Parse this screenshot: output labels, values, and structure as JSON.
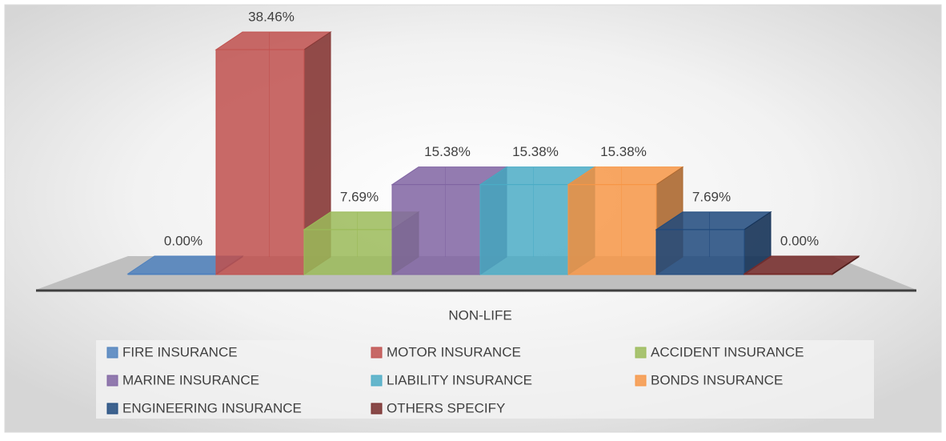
{
  "chart_data": {
    "type": "bar3d",
    "categories": [
      "NON-LIFE"
    ],
    "series": [
      {
        "name": "FIRE INSURANCE",
        "color": "#4f81bd",
        "values": [
          0
        ],
        "value_labels": [
          "0.00%"
        ]
      },
      {
        "name": "MOTOR INSURANCE",
        "color": "#c0504d",
        "values": [
          38.46
        ],
        "value_labels": [
          "38.46%"
        ]
      },
      {
        "name": "ACCIDENT INSURANCE",
        "color": "#9bbb59",
        "values": [
          7.69
        ],
        "value_labels": [
          "7.69%"
        ]
      },
      {
        "name": "MARINE INSURANCE",
        "color": "#8064a2",
        "values": [
          15.38
        ],
        "value_labels": [
          "15.38%"
        ]
      },
      {
        "name": "LIABILITY INSURANCE",
        "color": "#4bacc6",
        "values": [
          15.38
        ],
        "value_labels": [
          "15.38%"
        ]
      },
      {
        "name": "BONDS INSURANCE",
        "color": "#f79646",
        "values": [
          15.38
        ],
        "value_labels": [
          "15.38%"
        ]
      },
      {
        "name": "ENGINEERING INSURANCE",
        "color": "#1f497d",
        "values": [
          7.69
        ],
        "value_labels": [
          "7.69%"
        ]
      },
      {
        "name": "OTHERS SPECIFY",
        "color": "#772c2a",
        "values": [
          0
        ],
        "value_labels": [
          "0.00%"
        ]
      }
    ],
    "legend": "bottom"
  }
}
